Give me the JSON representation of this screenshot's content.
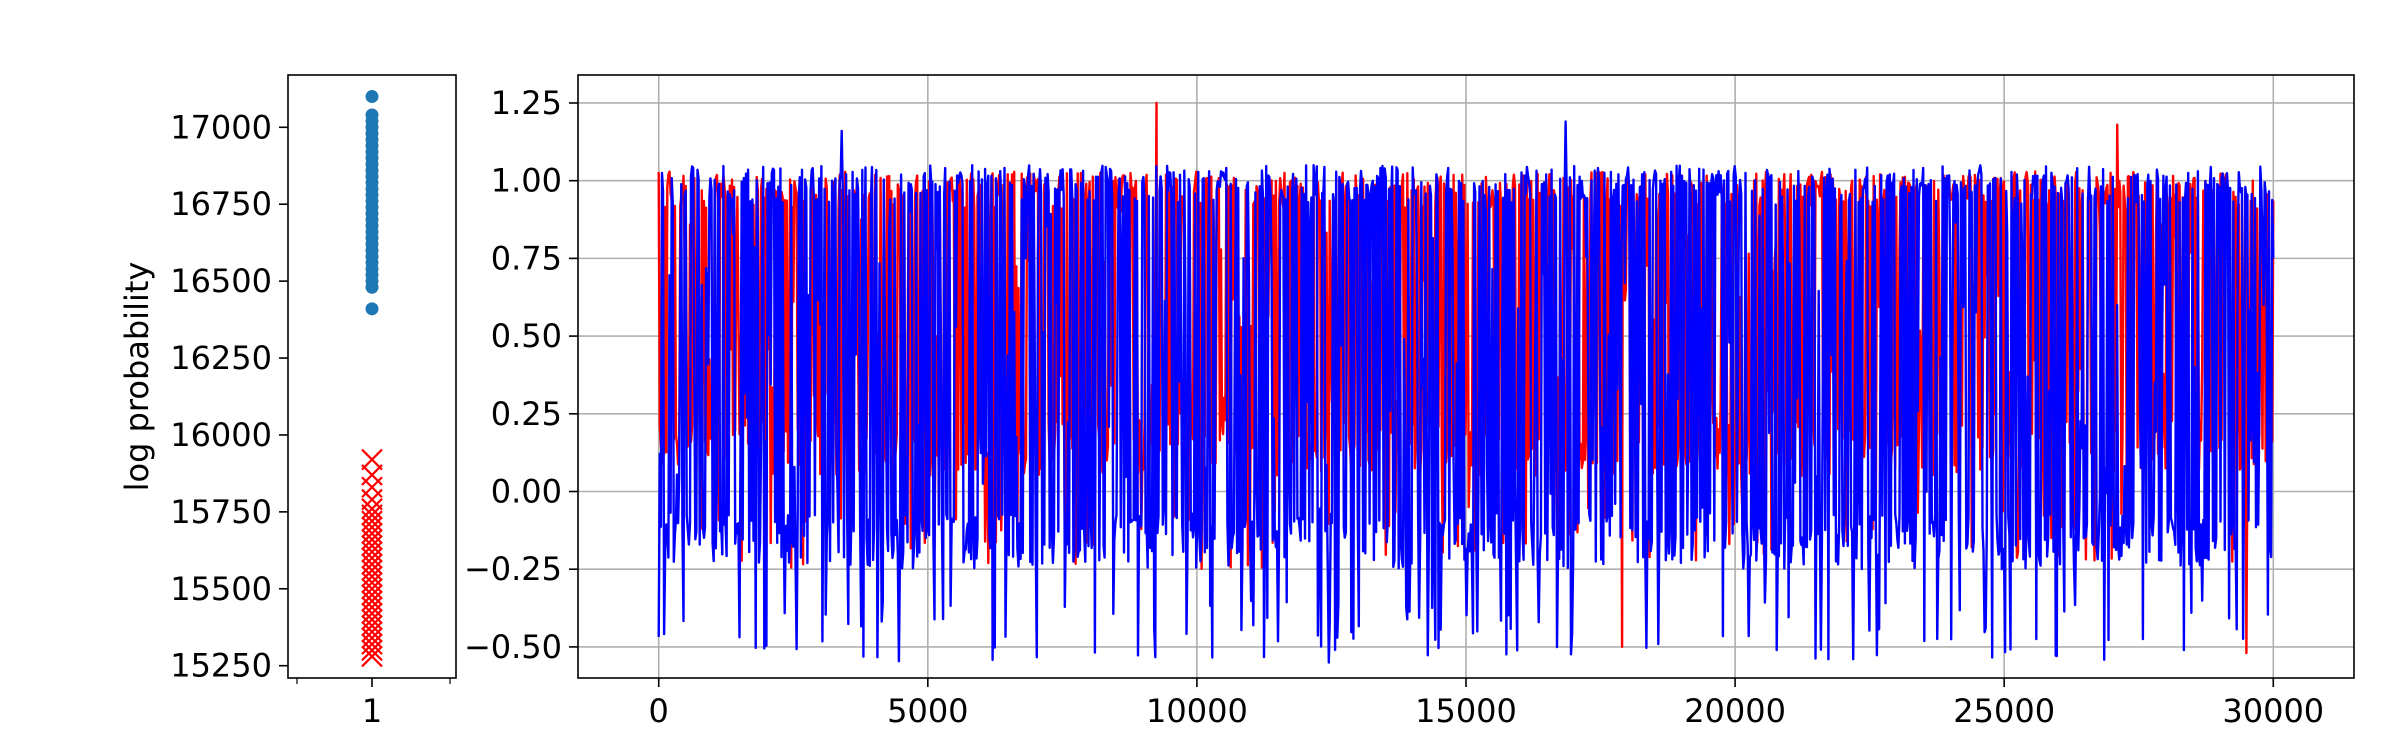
{
  "chart_data": [
    {
      "type": "scatter",
      "ylabel": "log probability",
      "xlabel": "",
      "title": "",
      "xlim": [
        0.5,
        1.5
      ],
      "ylim": [
        15210,
        17170
      ],
      "grid": false,
      "x_ticks": [
        {
          "value": 1,
          "label": "1"
        }
      ],
      "y_ticks": [
        {
          "value": 15250,
          "label": "15250"
        },
        {
          "value": 15500,
          "label": "15500"
        },
        {
          "value": 15750,
          "label": "15750"
        },
        {
          "value": 16000,
          "label": "16000"
        },
        {
          "value": 16250,
          "label": "16250"
        },
        {
          "value": 16500,
          "label": "16500"
        },
        {
          "value": 16750,
          "label": "16750"
        },
        {
          "value": 17000,
          "label": "17000"
        }
      ],
      "series": [
        {
          "marker": "circle",
          "color": "#1f77b4",
          "x": 1,
          "values": [
            17100,
            17040,
            17020,
            17000,
            16980,
            16960,
            16940,
            16920,
            16900,
            16880,
            16860,
            16840,
            16820,
            16800,
            16780,
            16760,
            16740,
            16720,
            16700,
            16680,
            16660,
            16640,
            16620,
            16600,
            16580,
            16560,
            16540,
            16520,
            16500,
            16480,
            16410
          ]
        },
        {
          "marker": "x",
          "color": "#ff0000",
          "x": 1,
          "values": [
            15920,
            15870,
            15830,
            15790,
            15760,
            15740,
            15720,
            15700,
            15680,
            15660,
            15640,
            15620,
            15600,
            15580,
            15560,
            15540,
            15520,
            15500,
            15480,
            15460,
            15440,
            15420,
            15400,
            15380,
            15360,
            15340,
            15320,
            15300,
            15280
          ]
        }
      ]
    },
    {
      "type": "line",
      "xlabel": "",
      "ylabel": "",
      "title": "",
      "xlim": [
        -1500,
        31500
      ],
      "ylim": [
        -0.6,
        1.34
      ],
      "grid": true,
      "x_ticks": [
        {
          "value": 0,
          "label": "0"
        },
        {
          "value": 5000,
          "label": "5000"
        },
        {
          "value": 10000,
          "label": "10000"
        },
        {
          "value": 15000,
          "label": "15000"
        },
        {
          "value": 20000,
          "label": "20000"
        },
        {
          "value": 25000,
          "label": "25000"
        },
        {
          "value": 30000,
          "label": "30000"
        }
      ],
      "y_ticks": [
        {
          "value": -0.5,
          "label": "−0.50"
        },
        {
          "value": -0.25,
          "label": "−0.25"
        },
        {
          "value": 0,
          "label": "0.00"
        },
        {
          "value": 0.25,
          "label": "0.25"
        },
        {
          "value": 0.5,
          "label": "0.50"
        },
        {
          "value": 0.75,
          "label": "0.75"
        },
        {
          "value": 1.0,
          "label": "1.00"
        },
        {
          "value": 1.25,
          "label": "1.25"
        }
      ],
      "series": [
        {
          "color": "#ff0000",
          "x_range": [
            0,
            30000
          ],
          "typical_range": [
            0.05,
            1.03
          ],
          "extremes": [
            {
              "x": 9250,
              "y": 1.25
            },
            {
              "x": 17900,
              "y": -0.5
            },
            {
              "x": 29500,
              "y": -0.52
            },
            {
              "x": 27100,
              "y": 1.18
            }
          ]
        },
        {
          "color": "#0000ff",
          "x_range": [
            0,
            30000
          ],
          "typical_range": [
            -0.25,
            1.05
          ],
          "extremes": [
            {
              "x": 12450,
              "y": -0.55
            },
            {
              "x": 16850,
              "y": 1.19
            },
            {
              "x": 3400,
              "y": 1.16
            }
          ]
        }
      ]
    }
  ]
}
